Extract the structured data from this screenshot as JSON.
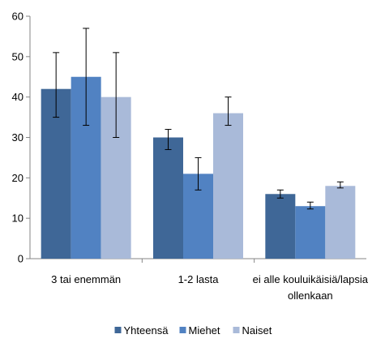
{
  "chart_data": {
    "type": "bar",
    "categories": [
      "3 tai enemmän",
      "1-2 lasta",
      "ei alle kouluikäisiä/lapsia ollenkaan"
    ],
    "category_lines": [
      [
        "3 tai enemmän"
      ],
      [
        "1-2 lasta"
      ],
      [
        "ei alle kouluikäisiä/lapsia",
        "ollenkaan"
      ]
    ],
    "series": [
      {
        "name": "Yhteensä",
        "color": "#3f6797",
        "values": [
          42,
          30,
          16
        ],
        "err_low": [
          35,
          27,
          15
        ],
        "err_high": [
          51,
          32,
          17
        ]
      },
      {
        "name": "Miehet",
        "color": "#5182c2",
        "values": [
          45,
          21,
          13
        ],
        "err_low": [
          33,
          17,
          12.3
        ],
        "err_high": [
          57,
          25,
          14
        ]
      },
      {
        "name": "Naiset",
        "color": "#a9bad9",
        "values": [
          40,
          36,
          18
        ],
        "err_low": [
          30,
          33,
          17.5
        ],
        "err_high": [
          51,
          40,
          19
        ]
      }
    ],
    "ylim": [
      0,
      60
    ],
    "yticks": [
      0,
      10,
      20,
      30,
      40,
      50,
      60
    ],
    "grid": false,
    "legend": "bottom",
    "title": "",
    "xlabel": "",
    "ylabel": ""
  }
}
